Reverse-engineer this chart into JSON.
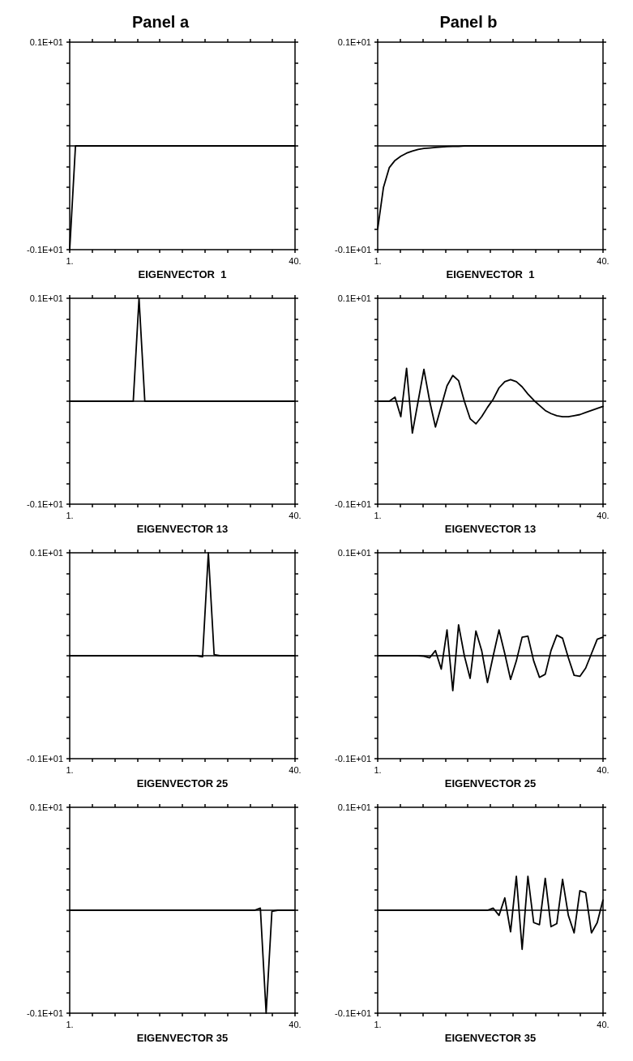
{
  "chart_data": [
    {
      "type": "line",
      "title": "Panel a",
      "xlabel": "EIGENVECTOR  1",
      "x": [
        1,
        2,
        3,
        4,
        5,
        6,
        7,
        8,
        9,
        10,
        11,
        12,
        13,
        14,
        15,
        16,
        17,
        18,
        19,
        20,
        21,
        22,
        23,
        24,
        25,
        26,
        27,
        28,
        29,
        30,
        31,
        32,
        33,
        34,
        35,
        36,
        37,
        38,
        39,
        40
      ],
      "series": [
        {
          "color": "#000000",
          "values": [
            -1,
            0,
            0,
            0,
            0,
            0,
            0,
            0,
            0,
            0,
            0,
            0,
            0,
            0,
            0,
            0,
            0,
            0,
            0,
            0,
            0,
            0,
            0,
            0,
            0,
            0,
            0,
            0,
            0,
            0,
            0,
            0,
            0,
            0,
            0,
            0,
            0,
            0,
            0,
            0
          ]
        }
      ],
      "xlim": [
        1,
        40
      ],
      "xticks": [
        {
          "value": 1,
          "label": "1."
        },
        {
          "value": 4.9,
          "label": null
        },
        {
          "value": 8.8,
          "label": null
        },
        {
          "value": 12.7,
          "label": null
        },
        {
          "value": 16.6,
          "label": null
        },
        {
          "value": 20.5,
          "label": null
        },
        {
          "value": 24.4,
          "label": null
        },
        {
          "value": 28.3,
          "label": null
        },
        {
          "value": 32.2,
          "label": null
        },
        {
          "value": 36.1,
          "label": null
        },
        {
          "value": 40,
          "label": "40."
        }
      ],
      "ylim": [
        -1,
        1
      ],
      "yticks": [
        {
          "value": -1,
          "label": "-0.1E+01"
        },
        {
          "value": -0.8,
          "label": null
        },
        {
          "value": -0.6,
          "label": null
        },
        {
          "value": -0.4,
          "label": null
        },
        {
          "value": -0.2,
          "label": null
        },
        {
          "value": 0,
          "label": null
        },
        {
          "value": 0.2,
          "label": null
        },
        {
          "value": 0.4,
          "label": null
        },
        {
          "value": 0.6,
          "label": null
        },
        {
          "value": 0.8,
          "label": null
        },
        {
          "value": 1,
          "label": "0.1E+01"
        }
      ],
      "ref_lines": [
        {
          "axis": "y",
          "value": 0
        }
      ],
      "grid": false,
      "marker": "none",
      "line_style": "solid"
    },
    {
      "type": "line",
      "title": "Panel b",
      "xlabel": "EIGENVECTOR  1",
      "x": [
        1,
        2,
        3,
        4,
        5,
        6,
        7,
        8,
        9,
        10,
        11,
        12,
        13,
        14,
        15,
        16,
        17,
        18,
        19,
        20,
        21,
        22,
        23,
        24,
        25,
        26,
        27,
        28,
        29,
        30,
        31,
        32,
        33,
        34,
        35,
        36,
        37,
        38,
        39,
        40
      ],
      "series": [
        {
          "color": "#000000",
          "values": [
            -0.8,
            -0.4,
            -0.21,
            -0.14,
            -0.1,
            -0.07,
            -0.05,
            -0.035,
            -0.025,
            -0.02,
            -0.015,
            -0.01,
            -0.007,
            -0.005,
            -0.005,
            0,
            0,
            0,
            0,
            0,
            0,
            0,
            0,
            0,
            0,
            0,
            0,
            0,
            0,
            0,
            0,
            0,
            0,
            0,
            0,
            0,
            0,
            0,
            0,
            0
          ]
        }
      ],
      "xlim": [
        1,
        40
      ],
      "xticks": [
        {
          "value": 1,
          "label": "1."
        },
        {
          "value": 4.9,
          "label": null
        },
        {
          "value": 8.8,
          "label": null
        },
        {
          "value": 12.7,
          "label": null
        },
        {
          "value": 16.6,
          "label": null
        },
        {
          "value": 20.5,
          "label": null
        },
        {
          "value": 24.4,
          "label": null
        },
        {
          "value": 28.3,
          "label": null
        },
        {
          "value": 32.2,
          "label": null
        },
        {
          "value": 36.1,
          "label": null
        },
        {
          "value": 40,
          "label": "40."
        }
      ],
      "ylim": [
        -1,
        1
      ],
      "yticks": [
        {
          "value": -1,
          "label": "-0.1E+01"
        },
        {
          "value": -0.8,
          "label": null
        },
        {
          "value": -0.6,
          "label": null
        },
        {
          "value": -0.4,
          "label": null
        },
        {
          "value": -0.2,
          "label": null
        },
        {
          "value": 0,
          "label": null
        },
        {
          "value": 0.2,
          "label": null
        },
        {
          "value": 0.4,
          "label": null
        },
        {
          "value": 0.6,
          "label": null
        },
        {
          "value": 0.8,
          "label": null
        },
        {
          "value": 1,
          "label": "0.1E+01"
        }
      ],
      "ref_lines": [
        {
          "axis": "y",
          "value": 0
        }
      ],
      "grid": false,
      "marker": "none",
      "line_style": "solid"
    },
    {
      "type": "line",
      "xlabel": "EIGENVECTOR 13",
      "x": [
        1,
        2,
        3,
        4,
        5,
        6,
        7,
        8,
        9,
        10,
        11,
        12,
        13,
        14,
        15,
        16,
        17,
        18,
        19,
        20,
        21,
        22,
        23,
        24,
        25,
        26,
        27,
        28,
        29,
        30,
        31,
        32,
        33,
        34,
        35,
        36,
        37,
        38,
        39,
        40
      ],
      "series": [
        {
          "color": "#000000",
          "values": [
            0,
            0,
            0,
            0,
            0,
            0,
            0,
            0,
            0,
            0,
            0,
            0,
            1,
            0,
            0,
            0,
            0,
            0,
            0,
            0,
            0,
            0,
            0,
            0,
            0,
            0,
            0,
            0,
            0,
            0,
            0,
            0,
            0,
            0,
            0,
            0,
            0,
            0,
            0,
            0
          ]
        }
      ],
      "xlim": [
        1,
        40
      ],
      "xticks": [
        {
          "value": 1,
          "label": "1."
        },
        {
          "value": 4.9,
          "label": null
        },
        {
          "value": 8.8,
          "label": null
        },
        {
          "value": 12.7,
          "label": null
        },
        {
          "value": 16.6,
          "label": null
        },
        {
          "value": 20.5,
          "label": null
        },
        {
          "value": 24.4,
          "label": null
        },
        {
          "value": 28.3,
          "label": null
        },
        {
          "value": 32.2,
          "label": null
        },
        {
          "value": 36.1,
          "label": null
        },
        {
          "value": 40,
          "label": "40."
        }
      ],
      "ylim": [
        -1,
        1
      ],
      "yticks": [
        {
          "value": -1,
          "label": "-0.1E+01"
        },
        {
          "value": -0.8,
          "label": null
        },
        {
          "value": -0.6,
          "label": null
        },
        {
          "value": -0.4,
          "label": null
        },
        {
          "value": -0.2,
          "label": null
        },
        {
          "value": 0,
          "label": null
        },
        {
          "value": 0.2,
          "label": null
        },
        {
          "value": 0.4,
          "label": null
        },
        {
          "value": 0.6,
          "label": null
        },
        {
          "value": 0.8,
          "label": null
        },
        {
          "value": 1,
          "label": "0.1E+01"
        }
      ],
      "ref_lines": [
        {
          "axis": "y",
          "value": 0
        }
      ],
      "grid": false,
      "marker": "none",
      "line_style": "solid"
    },
    {
      "type": "line",
      "xlabel": "EIGENVECTOR 13",
      "x": [
        1,
        2,
        3,
        4,
        5,
        6,
        7,
        8,
        9,
        10,
        11,
        12,
        13,
        14,
        15,
        16,
        17,
        18,
        19,
        20,
        21,
        22,
        23,
        24,
        25,
        26,
        27,
        28,
        29,
        30,
        31,
        32,
        33,
        34,
        35,
        36,
        37,
        38,
        39,
        40
      ],
      "series": [
        {
          "color": "#000000",
          "values": [
            0,
            0,
            0,
            0.04,
            -0.15,
            0.32,
            -0.31,
            0,
            0.31,
            0,
            -0.25,
            -0.05,
            0.15,
            0.25,
            0.2,
            0,
            -0.17,
            -0.22,
            -0.15,
            -0.06,
            0.02,
            0.13,
            0.19,
            0.21,
            0.19,
            0.14,
            0.07,
            0.01,
            -0.04,
            -0.09,
            -0.12,
            -0.14,
            -0.15,
            -0.15,
            -0.14,
            -0.13,
            -0.11,
            -0.09,
            -0.07,
            -0.05
          ]
        }
      ],
      "xlim": [
        1,
        40
      ],
      "xticks": [
        {
          "value": 1,
          "label": "1."
        },
        {
          "value": 4.9,
          "label": null
        },
        {
          "value": 8.8,
          "label": null
        },
        {
          "value": 12.7,
          "label": null
        },
        {
          "value": 16.6,
          "label": null
        },
        {
          "value": 20.5,
          "label": null
        },
        {
          "value": 24.4,
          "label": null
        },
        {
          "value": 28.3,
          "label": null
        },
        {
          "value": 32.2,
          "label": null
        },
        {
          "value": 36.1,
          "label": null
        },
        {
          "value": 40,
          "label": "40."
        }
      ],
      "ylim": [
        -1,
        1
      ],
      "yticks": [
        {
          "value": -1,
          "label": "-0.1E+01"
        },
        {
          "value": -0.8,
          "label": null
        },
        {
          "value": -0.6,
          "label": null
        },
        {
          "value": -0.4,
          "label": null
        },
        {
          "value": -0.2,
          "label": null
        },
        {
          "value": 0,
          "label": null
        },
        {
          "value": 0.2,
          "label": null
        },
        {
          "value": 0.4,
          "label": null
        },
        {
          "value": 0.6,
          "label": null
        },
        {
          "value": 0.8,
          "label": null
        },
        {
          "value": 1,
          "label": "0.1E+01"
        }
      ],
      "ref_lines": [
        {
          "axis": "y",
          "value": 0
        }
      ],
      "grid": false,
      "marker": "none",
      "line_style": "solid"
    },
    {
      "type": "line",
      "xlabel": "EIGENVECTOR 25",
      "x": [
        1,
        2,
        3,
        4,
        5,
        6,
        7,
        8,
        9,
        10,
        11,
        12,
        13,
        14,
        15,
        16,
        17,
        18,
        19,
        20,
        21,
        22,
        23,
        24,
        25,
        26,
        27,
        28,
        29,
        30,
        31,
        32,
        33,
        34,
        35,
        36,
        37,
        38,
        39,
        40
      ],
      "series": [
        {
          "color": "#000000",
          "values": [
            0,
            0,
            0,
            0,
            0,
            0,
            0,
            0,
            0,
            0,
            0,
            0,
            0,
            0,
            0,
            0,
            0,
            0,
            0,
            0,
            0,
            0,
            0,
            -0.01,
            1,
            0.01,
            0,
            0,
            0,
            0,
            0,
            0,
            0,
            0,
            0,
            0,
            0,
            0,
            0,
            0
          ]
        }
      ],
      "xlim": [
        1,
        40
      ],
      "xticks": [
        {
          "value": 1,
          "label": "1."
        },
        {
          "value": 4.9,
          "label": null
        },
        {
          "value": 8.8,
          "label": null
        },
        {
          "value": 12.7,
          "label": null
        },
        {
          "value": 16.6,
          "label": null
        },
        {
          "value": 20.5,
          "label": null
        },
        {
          "value": 24.4,
          "label": null
        },
        {
          "value": 28.3,
          "label": null
        },
        {
          "value": 32.2,
          "label": null
        },
        {
          "value": 36.1,
          "label": null
        },
        {
          "value": 40,
          "label": "40."
        }
      ],
      "ylim": [
        -1,
        1
      ],
      "yticks": [
        {
          "value": -1,
          "label": "-0.1E+01"
        },
        {
          "value": -0.8,
          "label": null
        },
        {
          "value": -0.6,
          "label": null
        },
        {
          "value": -0.4,
          "label": null
        },
        {
          "value": -0.2,
          "label": null
        },
        {
          "value": 0,
          "label": null
        },
        {
          "value": 0.2,
          "label": null
        },
        {
          "value": 0.4,
          "label": null
        },
        {
          "value": 0.6,
          "label": null
        },
        {
          "value": 0.8,
          "label": null
        },
        {
          "value": 1,
          "label": "0.1E+01"
        }
      ],
      "ref_lines": [
        {
          "axis": "y",
          "value": 0
        }
      ],
      "grid": false,
      "marker": "none",
      "line_style": "solid"
    },
    {
      "type": "line",
      "xlabel": "EIGENVECTOR 25",
      "x": [
        1,
        2,
        3,
        4,
        5,
        6,
        7,
        8,
        9,
        10,
        11,
        12,
        13,
        14,
        15,
        16,
        17,
        18,
        19,
        20,
        21,
        22,
        23,
        24,
        25,
        26,
        27,
        28,
        29,
        30,
        31,
        32,
        33,
        34,
        35,
        36,
        37,
        38,
        39,
        40
      ],
      "series": [
        {
          "color": "#000000",
          "values": [
            0,
            0,
            0,
            0,
            0,
            0,
            0,
            0,
            -0.005,
            -0.02,
            0.05,
            -0.13,
            0.25,
            -0.34,
            0.3,
            0,
            -0.22,
            0.24,
            0.05,
            -0.26,
            0,
            0.25,
            0.02,
            -0.23,
            -0.05,
            0.18,
            0.19,
            -0.05,
            -0.21,
            -0.18,
            0.05,
            0.2,
            0.17,
            -0.02,
            -0.19,
            -0.2,
            -0.12,
            0.02,
            0.16,
            0.18
          ]
        }
      ],
      "xlim": [
        1,
        40
      ],
      "xticks": [
        {
          "value": 1,
          "label": "1."
        },
        {
          "value": 4.9,
          "label": null
        },
        {
          "value": 8.8,
          "label": null
        },
        {
          "value": 12.7,
          "label": null
        },
        {
          "value": 16.6,
          "label": null
        },
        {
          "value": 20.5,
          "label": null
        },
        {
          "value": 24.4,
          "label": null
        },
        {
          "value": 28.3,
          "label": null
        },
        {
          "value": 32.2,
          "label": null
        },
        {
          "value": 36.1,
          "label": null
        },
        {
          "value": 40,
          "label": "40."
        }
      ],
      "ylim": [
        -1,
        1
      ],
      "yticks": [
        {
          "value": -1,
          "label": "-0.1E+01"
        },
        {
          "value": -0.8,
          "label": null
        },
        {
          "value": -0.6,
          "label": null
        },
        {
          "value": -0.4,
          "label": null
        },
        {
          "value": -0.2,
          "label": null
        },
        {
          "value": 0,
          "label": null
        },
        {
          "value": 0.2,
          "label": null
        },
        {
          "value": 0.4,
          "label": null
        },
        {
          "value": 0.6,
          "label": null
        },
        {
          "value": 0.8,
          "label": null
        },
        {
          "value": 1,
          "label": "0.1E+01"
        }
      ],
      "ref_lines": [
        {
          "axis": "y",
          "value": 0
        }
      ],
      "grid": false,
      "marker": "none",
      "line_style": "solid"
    },
    {
      "type": "line",
      "xlabel": "EIGENVECTOR 35",
      "x": [
        1,
        2,
        3,
        4,
        5,
        6,
        7,
        8,
        9,
        10,
        11,
        12,
        13,
        14,
        15,
        16,
        17,
        18,
        19,
        20,
        21,
        22,
        23,
        24,
        25,
        26,
        27,
        28,
        29,
        30,
        31,
        32,
        33,
        34,
        35,
        36,
        37,
        38,
        39,
        40
      ],
      "series": [
        {
          "color": "#000000",
          "values": [
            0,
            0,
            0,
            0,
            0,
            0,
            0,
            0,
            0,
            0,
            0,
            0,
            0,
            0,
            0,
            0,
            0,
            0,
            0,
            0,
            0,
            0,
            0,
            0,
            0,
            0,
            0,
            0,
            0,
            0,
            0,
            0,
            0,
            0.02,
            -1,
            -0.01,
            0,
            0,
            0,
            0
          ]
        }
      ],
      "xlim": [
        1,
        40
      ],
      "xticks": [
        {
          "value": 1,
          "label": "1."
        },
        {
          "value": 4.9,
          "label": null
        },
        {
          "value": 8.8,
          "label": null
        },
        {
          "value": 12.7,
          "label": null
        },
        {
          "value": 16.6,
          "label": null
        },
        {
          "value": 20.5,
          "label": null
        },
        {
          "value": 24.4,
          "label": null
        },
        {
          "value": 28.3,
          "label": null
        },
        {
          "value": 32.2,
          "label": null
        },
        {
          "value": 36.1,
          "label": null
        },
        {
          "value": 40,
          "label": "40."
        }
      ],
      "ylim": [
        -1,
        1
      ],
      "yticks": [
        {
          "value": -1,
          "label": "-0.1E+01"
        },
        {
          "value": -0.8,
          "label": null
        },
        {
          "value": -0.6,
          "label": null
        },
        {
          "value": -0.4,
          "label": null
        },
        {
          "value": -0.2,
          "label": null
        },
        {
          "value": 0,
          "label": null
        },
        {
          "value": 0.2,
          "label": null
        },
        {
          "value": 0.4,
          "label": null
        },
        {
          "value": 0.6,
          "label": null
        },
        {
          "value": 0.8,
          "label": null
        },
        {
          "value": 1,
          "label": "0.1E+01"
        }
      ],
      "ref_lines": [
        {
          "axis": "y",
          "value": 0
        }
      ],
      "grid": false,
      "marker": "none",
      "line_style": "solid"
    },
    {
      "type": "line",
      "xlabel": "EIGENVECTOR 35",
      "x": [
        1,
        2,
        3,
        4,
        5,
        6,
        7,
        8,
        9,
        10,
        11,
        12,
        13,
        14,
        15,
        16,
        17,
        18,
        19,
        20,
        21,
        22,
        23,
        24,
        25,
        26,
        27,
        28,
        29,
        30,
        31,
        32,
        33,
        34,
        35,
        36,
        37,
        38,
        39,
        40
      ],
      "series": [
        {
          "color": "#000000",
          "values": [
            0,
            0,
            0,
            0,
            0,
            0,
            0,
            0,
            0,
            0,
            0,
            0,
            0,
            0,
            0,
            0,
            0,
            0,
            0,
            0,
            0.02,
            -0.05,
            0.12,
            -0.21,
            0.33,
            -0.38,
            0.33,
            -0.12,
            -0.14,
            0.31,
            -0.16,
            -0.13,
            0.3,
            -0.05,
            -0.22,
            0.19,
            0.17,
            -0.22,
            -0.12,
            0.1
          ]
        }
      ],
      "xlim": [
        1,
        40
      ],
      "xticks": [
        {
          "value": 1,
          "label": "1."
        },
        {
          "value": 4.9,
          "label": null
        },
        {
          "value": 8.8,
          "label": null
        },
        {
          "value": 12.7,
          "label": null
        },
        {
          "value": 16.6,
          "label": null
        },
        {
          "value": 20.5,
          "label": null
        },
        {
          "value": 24.4,
          "label": null
        },
        {
          "value": 28.3,
          "label": null
        },
        {
          "value": 32.2,
          "label": null
        },
        {
          "value": 36.1,
          "label": null
        },
        {
          "value": 40,
          "label": "40."
        }
      ],
      "ylim": [
        -1,
        1
      ],
      "yticks": [
        {
          "value": -1,
          "label": "-0.1E+01"
        },
        {
          "value": -0.8,
          "label": null
        },
        {
          "value": -0.6,
          "label": null
        },
        {
          "value": -0.4,
          "label": null
        },
        {
          "value": -0.2,
          "label": null
        },
        {
          "value": 0,
          "label": null
        },
        {
          "value": 0.2,
          "label": null
        },
        {
          "value": 0.4,
          "label": null
        },
        {
          "value": 0.6,
          "label": null
        },
        {
          "value": 0.8,
          "label": null
        },
        {
          "value": 1,
          "label": "0.1E+01"
        }
      ],
      "ref_lines": [
        {
          "axis": "y",
          "value": 0
        }
      ],
      "grid": false,
      "marker": "none",
      "line_style": "solid"
    }
  ]
}
